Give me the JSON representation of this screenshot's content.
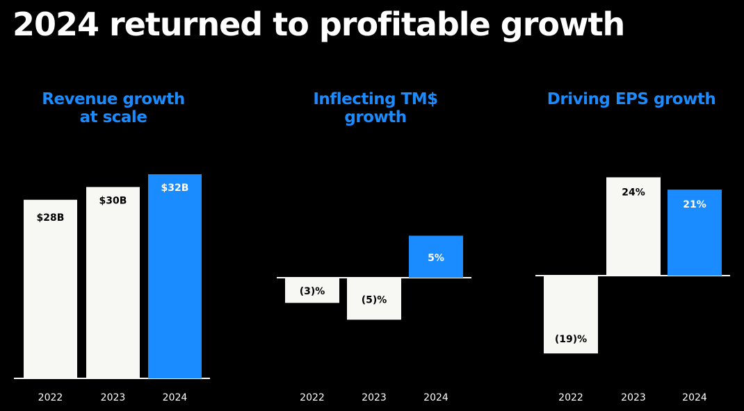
{
  "header": {
    "title": "2024 returned to profitable growth"
  },
  "colors": {
    "highlight": "#1a8cff",
    "neutral": "#f7f7f4",
    "background": "#000000",
    "text_on_light": "#000000",
    "text_on_highlight": "#ffffff"
  },
  "chart_data": [
    {
      "type": "bar",
      "title_lines": [
        "Revenue growth",
        "at scale"
      ],
      "categories": [
        "2022",
        "2023",
        "2024"
      ],
      "values": [
        28,
        30,
        32
      ],
      "value_labels": [
        "$28B",
        "$30B",
        "$32B"
      ],
      "highlight_index": 2,
      "ylim": [
        0,
        32
      ]
    },
    {
      "type": "bar",
      "title_lines": [
        "Inflecting TM$",
        "growth"
      ],
      "categories": [
        "2022",
        "2023",
        "2024"
      ],
      "values": [
        -3,
        -5,
        5
      ],
      "value_labels": [
        "(3)%",
        "(5)%",
        "5%"
      ],
      "highlight_index": 2,
      "ylim": [
        -5,
        5
      ]
    },
    {
      "type": "bar",
      "title_lines": [
        "Driving EPS growth"
      ],
      "categories": [
        "2022",
        "2023",
        "2024"
      ],
      "values": [
        -19,
        24,
        21
      ],
      "value_labels": [
        "(19)%",
        "24%",
        "21%"
      ],
      "highlight_index": 2,
      "ylim": [
        -19,
        24
      ]
    }
  ]
}
